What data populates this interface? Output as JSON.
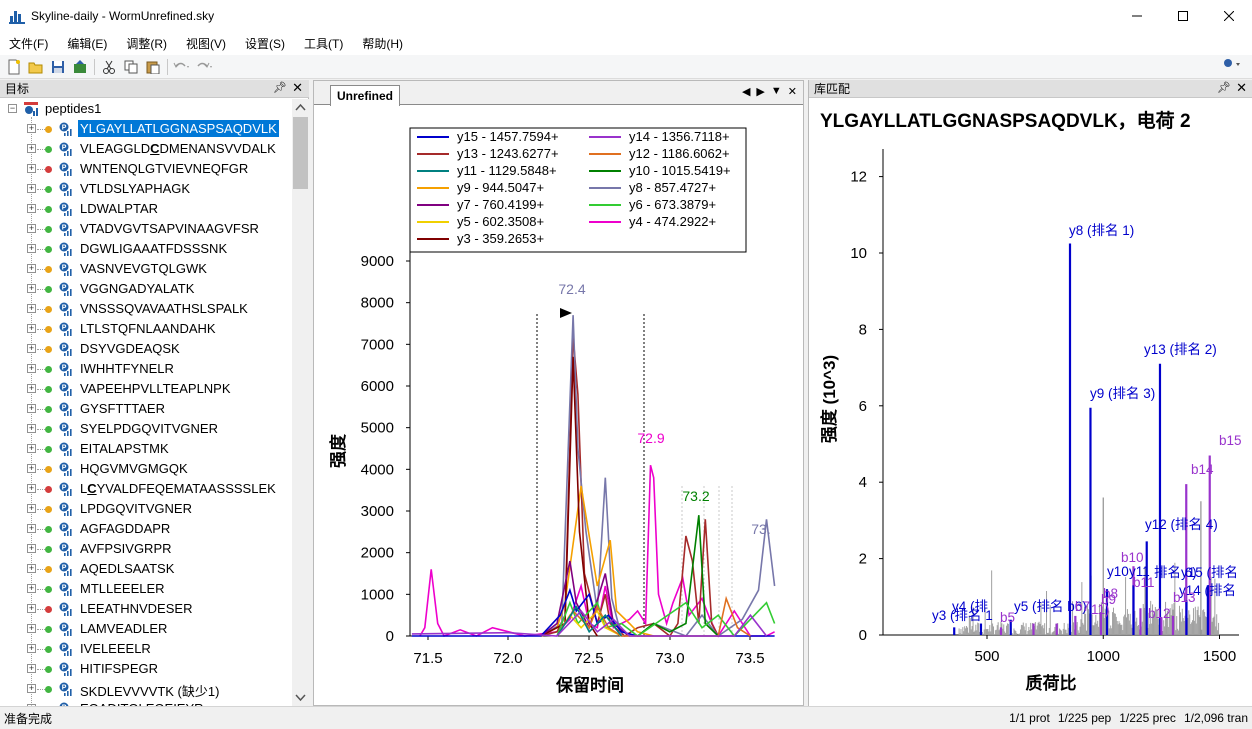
{
  "window": {
    "title": "Skyline-daily - WormUnrefined.sky"
  },
  "menu": [
    "文件(F)",
    "编辑(E)",
    "调整(R)",
    "视图(V)",
    "设置(S)",
    "工具(T)",
    "帮助(H)"
  ],
  "tree": {
    "header": "目标",
    "root": "peptides1",
    "items": [
      {
        "label": "YLGAYLLATLGGNASPSAQDVLK",
        "dot": "#e8a317",
        "selected": true
      },
      {
        "label": "VLEAGGLDCDMENANSVVDALK",
        "dot": "#41b541",
        "underline_index": 8
      },
      {
        "label": "WNTENQLGTVIEVNEQFGR",
        "dot": "#d43c3c"
      },
      {
        "label": "VTLDSLYAPHAGK",
        "dot": "#41b541"
      },
      {
        "label": "LDWALPTAR",
        "dot": "#41b541"
      },
      {
        "label": "VTADVGVTSAPVINAAGVFSR",
        "dot": "#41b541"
      },
      {
        "label": "DGWLIGAAATFDSSSNK",
        "dot": "#41b541"
      },
      {
        "label": "VASNVEVGTQLGWK",
        "dot": "#e8a317"
      },
      {
        "label": "VGGNGADYALATK",
        "dot": "#41b541"
      },
      {
        "label": "VNSSSQVAVAATHSLSPALK",
        "dot": "#e8a317"
      },
      {
        "label": "LTLSTQFNLAANDAHK",
        "dot": "#e8a317"
      },
      {
        "label": "DSYVGDEAQSK",
        "dot": "#e8a317"
      },
      {
        "label": "IWHHTFYNELR",
        "dot": "#41b541"
      },
      {
        "label": "VAPEEHPVLLTEAPLNPK",
        "dot": "#41b541"
      },
      {
        "label": "GYSFTTTAER",
        "dot": "#41b541"
      },
      {
        "label": "SYELPDGQVITVGNER",
        "dot": "#41b541"
      },
      {
        "label": "EITALAPSTMK",
        "dot": "#41b541"
      },
      {
        "label": "HQGVMVGMGQK",
        "dot": "#e8a317"
      },
      {
        "label": "LCYVALDFEQEMATAASSSSLEK",
        "dot": "#d43c3c",
        "underline_index": 1
      },
      {
        "label": "LPDGQVITVGNER",
        "dot": "#e8a317"
      },
      {
        "label": "AGFAGDDAPR",
        "dot": "#41b541"
      },
      {
        "label": "AVFPSIVGRPR",
        "dot": "#41b541"
      },
      {
        "label": "AQEDLSAATSK",
        "dot": "#e8a317"
      },
      {
        "label": "MTLLEEELER",
        "dot": "#41b541"
      },
      {
        "label": "LEEATHNVDESER",
        "dot": "#d43c3c"
      },
      {
        "label": "LAMVEADLER",
        "dot": "#41b541"
      },
      {
        "label": "IVELEEELR",
        "dot": "#41b541"
      },
      {
        "label": "HITIFSPEGR",
        "dot": "#41b541"
      },
      {
        "label": "SKDLEVVVVTK (缺少1)",
        "dot": "#41b541"
      },
      {
        "label": "EQADITQLEQEIEYR",
        "dot": "#41b541"
      }
    ]
  },
  "chromatogram": {
    "tab": "Unrefined",
    "legend": [
      {
        "label": "y15 - 1457.7594+",
        "color": "#0000cc"
      },
      {
        "label": "y14 - 1356.7118+",
        "color": "#9933cc"
      },
      {
        "label": "y13 - 1243.6277+",
        "color": "#a52a2a"
      },
      {
        "label": "y12 - 1186.6062+",
        "color": "#e07020"
      },
      {
        "label": "y11 - 1129.5848+",
        "color": "#008080"
      },
      {
        "label": "y10 - 1015.5419+",
        "color": "#008000"
      },
      {
        "label": "y9 - 944.5047+",
        "color": "#f5a000"
      },
      {
        "label": "y8 - 857.4727+",
        "color": "#7777aa"
      },
      {
        "label": "y7 - 760.4199+",
        "color": "#800080"
      },
      {
        "label": "y6 - 673.3879+",
        "color": "#33cc33"
      },
      {
        "label": "y5 - 602.3508+",
        "color": "#f0d000"
      },
      {
        "label": "y4 - 474.2922+",
        "color": "#ee00cc"
      },
      {
        "label": "y3 - 359.2653+",
        "color": "#800000"
      }
    ],
    "y_ticks": [
      "9000",
      "8000",
      "7000",
      "6000",
      "5000",
      "4000",
      "3000",
      "2000",
      "1000",
      "0"
    ],
    "x_ticks": [
      "71.5",
      "72.0",
      "72.5",
      "73.0",
      "73.5"
    ],
    "ylabel": "强度",
    "xlabel": "保留时间",
    "peak_labels": [
      {
        "text": "72.4",
        "color": "#7777aa"
      },
      {
        "text": "72.9",
        "color": "#ee00cc"
      },
      {
        "text": "73.2",
        "color": "#008000"
      },
      {
        "text": "73.",
        "color": "#7777aa"
      }
    ]
  },
  "spectrum": {
    "header": "库匹配",
    "title": "YLGAYLLATLGGNASPSAQDVLK，电荷 2",
    "ylabel": "强度 (10^3)",
    "xlabel": "质荷比",
    "y_ticks": [
      "12",
      "10",
      "8",
      "6",
      "4",
      "2",
      "0"
    ],
    "x_ticks": [
      "500",
      "1000",
      "1500"
    ],
    "labels": [
      {
        "text": "y8 (排名 1)",
        "color": "#0000cc"
      },
      {
        "text": "y13 (排名 2)",
        "color": "#0000cc"
      },
      {
        "text": "y9 (排名 3)",
        "color": "#0000cc"
      },
      {
        "text": "y12 (排名 4)",
        "color": "#0000cc"
      },
      {
        "text": "b15",
        "color": "#9933cc"
      },
      {
        "text": "b14",
        "color": "#9933cc"
      },
      {
        "text": "b10",
        "color": "#9933cc"
      },
      {
        "text": "y10",
        "color": "#0000cc"
      },
      {
        "text": "y11",
        "color": "#0000cc"
      },
      {
        "text": "排名 6)",
        "color": "#0000cc"
      },
      {
        "text": "y15 (排名",
        "color": "#0000cc"
      },
      {
        "text": "b11",
        "color": "#9933cc"
      },
      {
        "text": "y14 (排名",
        "color": "#0000cc"
      },
      {
        "text": "b8",
        "color": "#9933cc"
      },
      {
        "text": "b9",
        "color": "#9933cc"
      },
      {
        "text": "b13",
        "color": "#9933cc"
      },
      {
        "text": "b12",
        "color": "#9933cc"
      },
      {
        "text": "y4 (排",
        "color": "#0000cc"
      },
      {
        "text": "y5 (排名 b6)",
        "color": "#0000cc"
      },
      {
        "text": "b7",
        "color": "#9933cc"
      },
      {
        "text": "11)",
        "color": "#9933cc"
      },
      {
        "text": "y3 (排名 1",
        "color": "#0000cc"
      },
      {
        "text": "b5",
        "color": "#9933cc"
      }
    ]
  },
  "status": {
    "left": "准备完成",
    "right": [
      "1/1 prot",
      "1/225 pep",
      "1/225 prec",
      "1/2,096 tran"
    ]
  }
}
